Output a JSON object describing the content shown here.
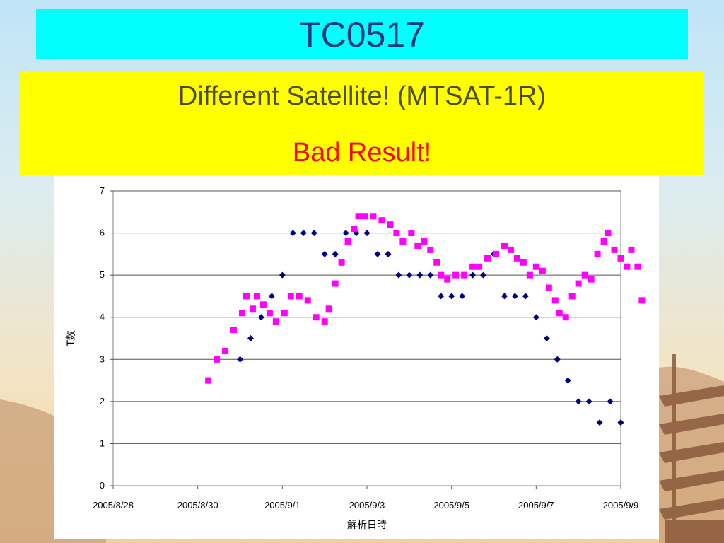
{
  "slide": {
    "title": "TC0517",
    "note_line1": "Different Satellite! (MTSAT-1R)",
    "note_line2": "Bad Result!",
    "colors": {
      "title_bg": "#00ffff",
      "title_text": "#1a3a7a",
      "note_bg": "#ffff00",
      "note_text": "#4d4d0c",
      "note_alert": "#ff0000"
    },
    "decor": [
      "pagoda-silhouette",
      "mountain-silhouette"
    ]
  },
  "chart_data": {
    "type": "scatter",
    "title": "",
    "xlabel": "解析日時",
    "ylabel": "T数",
    "x_ticks": [
      "2005/8/28",
      "2005/8/30",
      "2005/9/1",
      "2005/9/3",
      "2005/9/5",
      "2005/9/7",
      "2005/9/9"
    ],
    "y_ticks": [
      "0",
      "1",
      "2",
      "3",
      "4",
      "5",
      "6",
      "7"
    ],
    "ylim": [
      0,
      7
    ],
    "xlim_days": [
      0,
      12
    ],
    "grid": "horizontal",
    "legend": "none",
    "series": [
      {
        "marker": "diamond",
        "color": "#000080",
        "points": [
          [
            3.0,
            3.0
          ],
          [
            3.25,
            3.5
          ],
          [
            3.5,
            4.0
          ],
          [
            3.75,
            4.5
          ],
          [
            4.0,
            5.0
          ],
          [
            4.25,
            6.0
          ],
          [
            4.5,
            6.0
          ],
          [
            4.75,
            6.0
          ],
          [
            5.0,
            5.5
          ],
          [
            5.25,
            5.5
          ],
          [
            5.5,
            6.0
          ],
          [
            5.75,
            6.0
          ],
          [
            6.0,
            6.0
          ],
          [
            6.25,
            5.5
          ],
          [
            6.5,
            5.5
          ],
          [
            6.75,
            5.0
          ],
          [
            7.0,
            5.0
          ],
          [
            7.25,
            5.0
          ],
          [
            7.5,
            5.0
          ],
          [
            7.75,
            4.5
          ],
          [
            8.0,
            4.5
          ],
          [
            8.25,
            4.5
          ],
          [
            8.5,
            5.0
          ],
          [
            8.75,
            5.0
          ],
          [
            9.0,
            5.5
          ],
          [
            9.25,
            4.5
          ],
          [
            9.5,
            4.5
          ],
          [
            9.75,
            4.5
          ],
          [
            10.0,
            4.0
          ],
          [
            10.25,
            3.5
          ],
          [
            10.5,
            3.0
          ],
          [
            10.75,
            2.5
          ],
          [
            11.0,
            2.0
          ],
          [
            11.25,
            2.0
          ],
          [
            11.5,
            1.5
          ],
          [
            11.75,
            2.0
          ],
          [
            12.0,
            1.5
          ]
        ]
      },
      {
        "marker": "square",
        "color": "#ff00ff",
        "points": [
          [
            2.25,
            2.5
          ],
          [
            2.45,
            3.0
          ],
          [
            2.65,
            3.2
          ],
          [
            2.85,
            3.7
          ],
          [
            3.05,
            4.1
          ],
          [
            3.15,
            4.5
          ],
          [
            3.3,
            4.2
          ],
          [
            3.4,
            4.5
          ],
          [
            3.55,
            4.3
          ],
          [
            3.7,
            4.1
          ],
          [
            3.85,
            3.9
          ],
          [
            4.05,
            4.1
          ],
          [
            4.2,
            4.5
          ],
          [
            4.4,
            4.5
          ],
          [
            4.6,
            4.4
          ],
          [
            4.8,
            4.0
          ],
          [
            5.0,
            3.9
          ],
          [
            5.1,
            4.2
          ],
          [
            5.25,
            4.8
          ],
          [
            5.4,
            5.3
          ],
          [
            5.55,
            5.8
          ],
          [
            5.7,
            6.1
          ],
          [
            5.8,
            6.4
          ],
          [
            5.95,
            6.4
          ],
          [
            6.15,
            6.4
          ],
          [
            6.35,
            6.3
          ],
          [
            6.55,
            6.2
          ],
          [
            6.7,
            6.0
          ],
          [
            6.85,
            5.8
          ],
          [
            7.05,
            6.0
          ],
          [
            7.2,
            5.7
          ],
          [
            7.35,
            5.8
          ],
          [
            7.5,
            5.6
          ],
          [
            7.65,
            5.3
          ],
          [
            7.75,
            5.0
          ],
          [
            7.9,
            4.9
          ],
          [
            8.1,
            5.0
          ],
          [
            8.3,
            5.0
          ],
          [
            8.5,
            5.2
          ],
          [
            8.65,
            5.2
          ],
          [
            8.85,
            5.4
          ],
          [
            9.05,
            5.5
          ],
          [
            9.25,
            5.7
          ],
          [
            9.4,
            5.6
          ],
          [
            9.55,
            5.4
          ],
          [
            9.7,
            5.3
          ],
          [
            9.85,
            5.0
          ],
          [
            10.0,
            5.2
          ],
          [
            10.15,
            5.1
          ],
          [
            10.3,
            4.7
          ],
          [
            10.45,
            4.4
          ],
          [
            10.55,
            4.1
          ],
          [
            10.7,
            4.0
          ],
          [
            10.85,
            4.5
          ],
          [
            11.0,
            4.8
          ],
          [
            11.15,
            5.0
          ],
          [
            11.3,
            4.9
          ],
          [
            11.45,
            5.5
          ],
          [
            11.6,
            5.8
          ],
          [
            11.7,
            6.0
          ],
          [
            11.85,
            5.6
          ],
          [
            12.0,
            5.4
          ],
          [
            12.15,
            5.2
          ],
          [
            12.25,
            5.6
          ],
          [
            12.4,
            5.2
          ],
          [
            12.5,
            4.4
          ]
        ]
      }
    ]
  }
}
